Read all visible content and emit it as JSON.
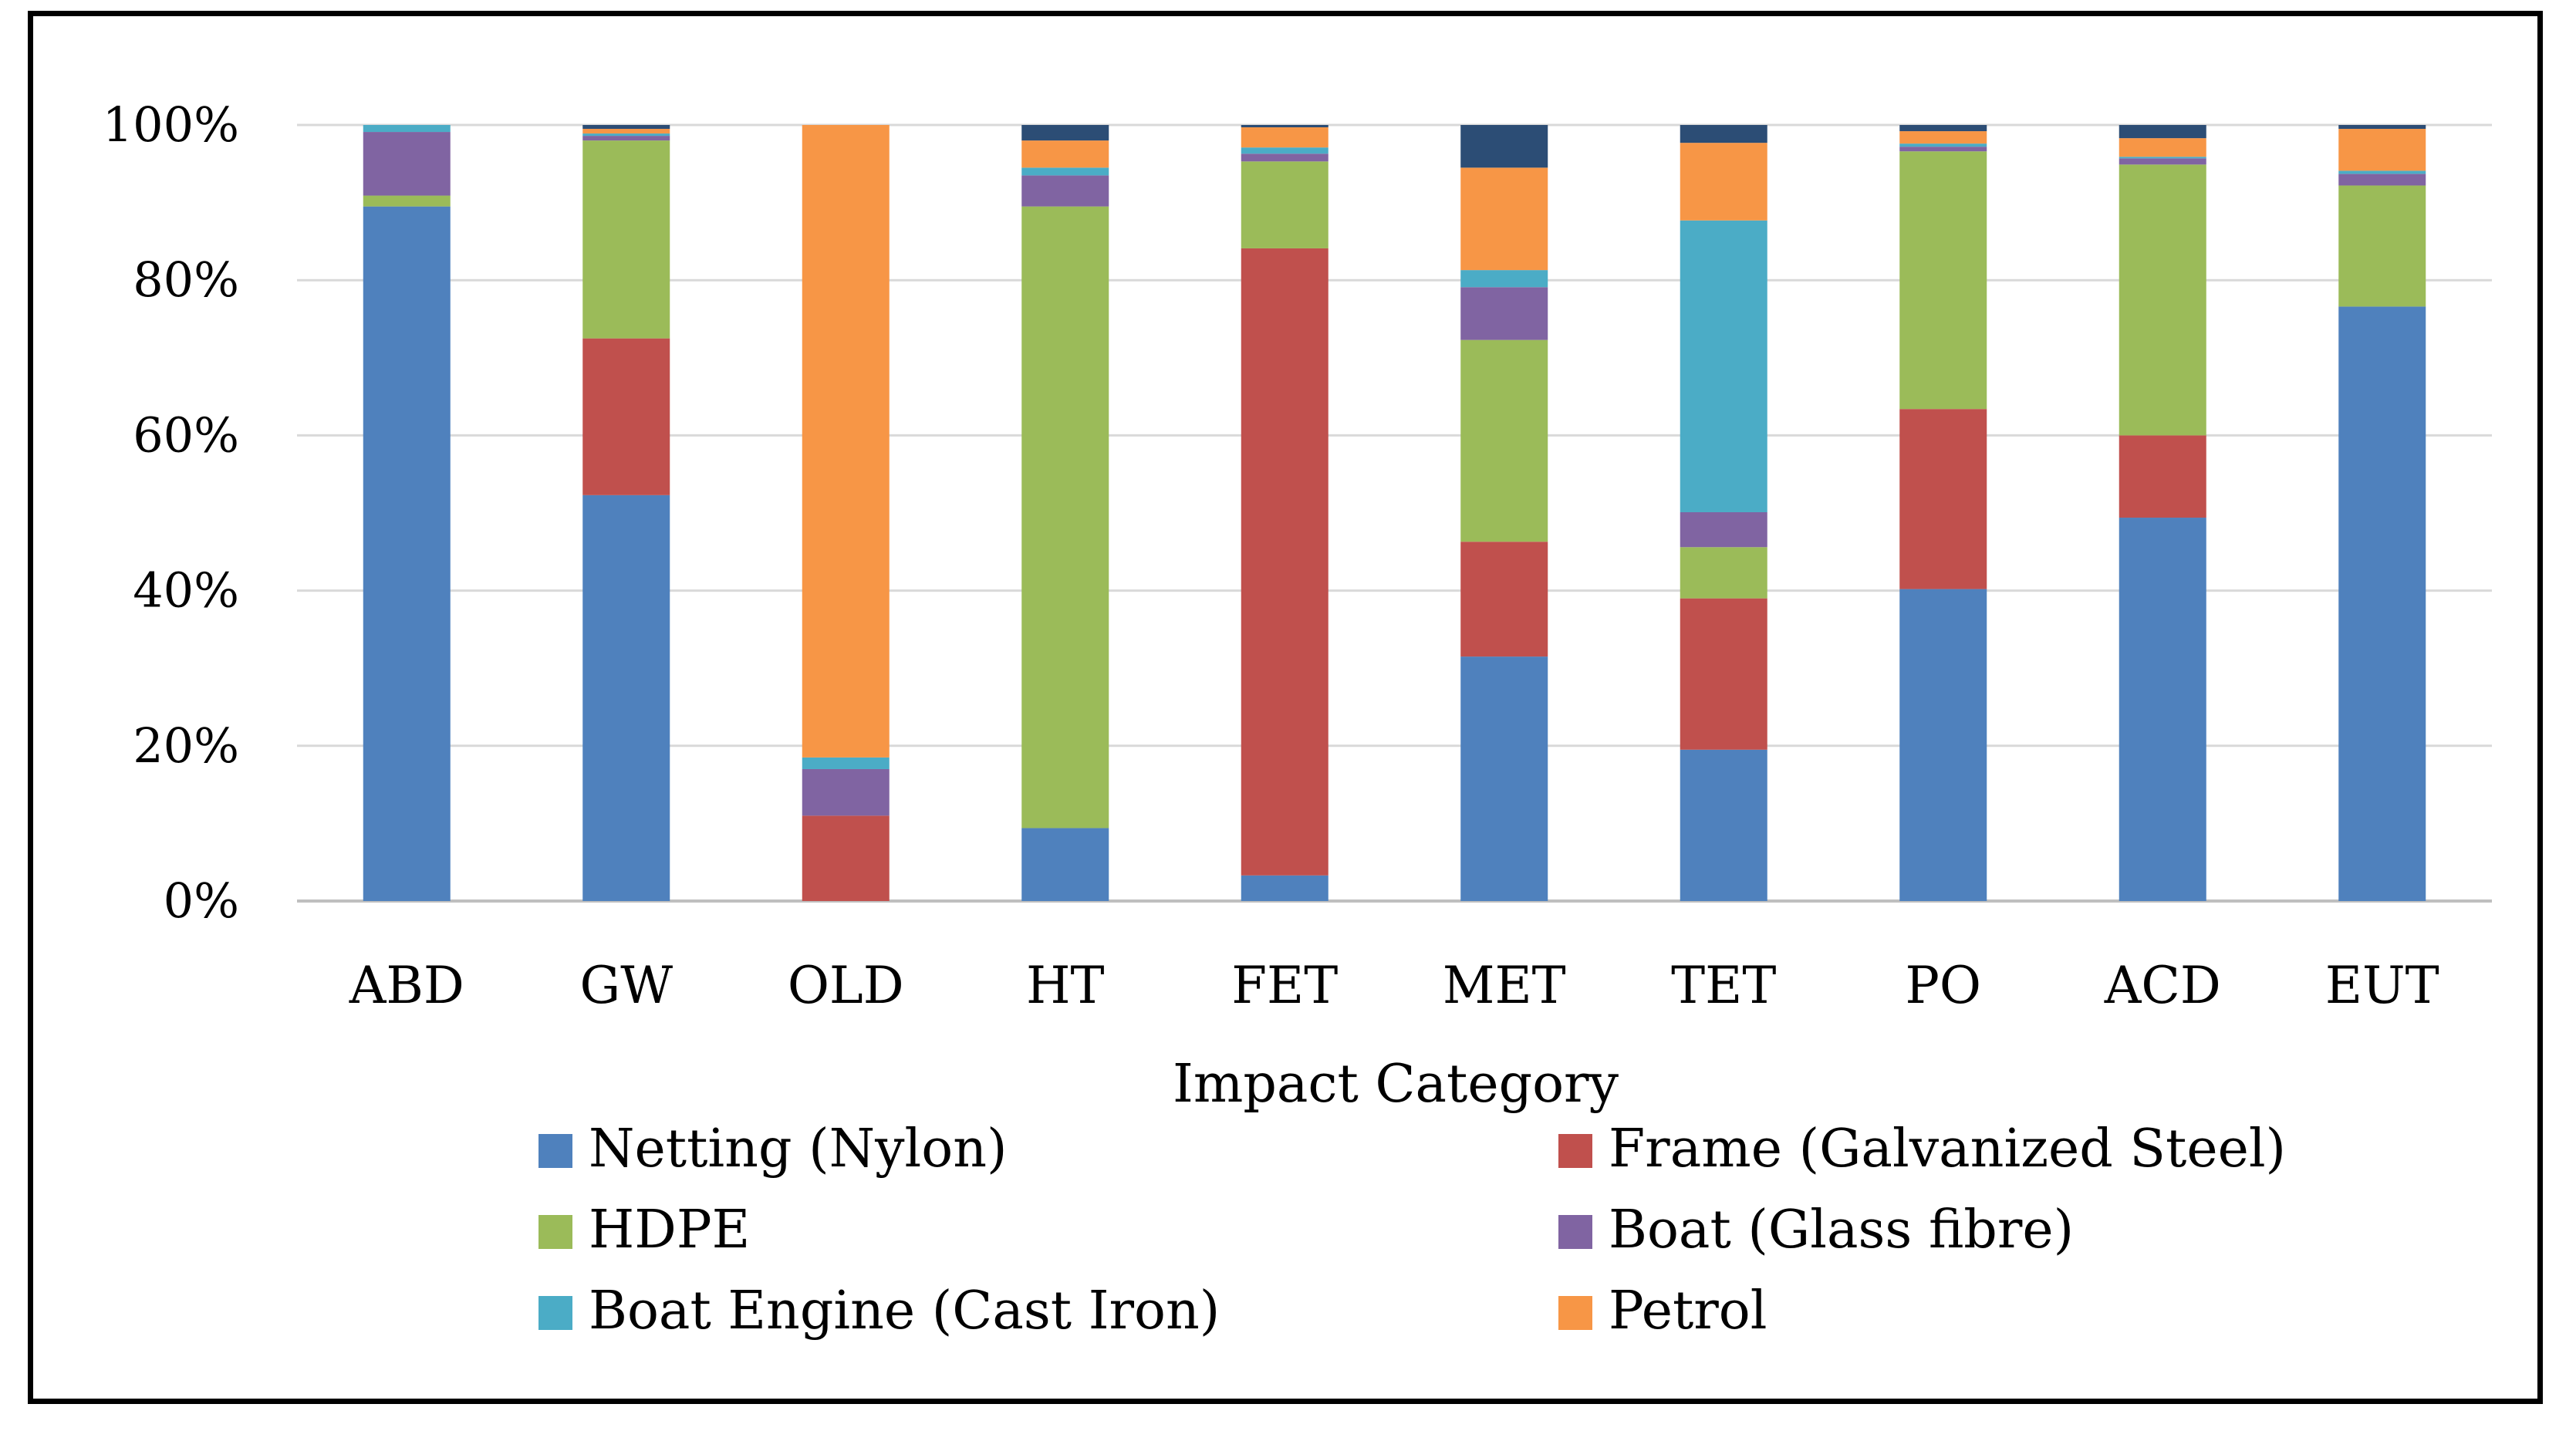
{
  "chart_data": {
    "type": "bar",
    "stacked": true,
    "xlabel": "Impact Category",
    "ylabel": "",
    "ylim": [
      0,
      100
    ],
    "y_ticks": [
      "0%",
      "20%",
      "40%",
      "60%",
      "80%",
      "100%"
    ],
    "grid": true,
    "legend_position": "bottom",
    "categories": [
      "ABD",
      "GW",
      "OLD",
      "HT",
      "FET",
      "MET",
      "TET",
      "PO",
      "ACD",
      "EUT"
    ],
    "series": [
      {
        "name": "Netting (Nylon)",
        "color": "#4F81BD",
        "values": [
          89.5,
          52.3,
          0.0,
          9.4,
          3.3,
          31.5,
          19.5,
          40.2,
          49.4,
          76.6
        ]
      },
      {
        "name": "Frame (Galvanized Steel)",
        "color": "#C0504D",
        "values": [
          0.0,
          20.2,
          11.0,
          0.0,
          80.8,
          14.8,
          19.5,
          23.2,
          10.6,
          0.0
        ]
      },
      {
        "name": "HDPE",
        "color": "#9BBB59",
        "values": [
          1.4,
          25.5,
          0.0,
          80.1,
          11.2,
          26.0,
          6.6,
          33.2,
          34.9,
          15.6
        ]
      },
      {
        "name": "Boat (Glass fibre)",
        "color": "#8064A2",
        "values": [
          8.2,
          0.6,
          6.0,
          4.0,
          1.0,
          6.8,
          4.5,
          0.6,
          0.8,
          1.5
        ]
      },
      {
        "name": "Boat Engine (Cast Iron)",
        "color": "#4BACC6",
        "values": [
          0.9,
          0.3,
          1.5,
          1.0,
          0.8,
          2.2,
          37.6,
          0.4,
          0.2,
          0.4
        ]
      },
      {
        "name": "Petrol",
        "color": "#F79646",
        "values": [
          0.0,
          0.6,
          81.5,
          3.5,
          2.6,
          13.2,
          10.0,
          1.6,
          2.4,
          5.4
        ]
      },
      {
        "name": "",
        "color": "#2C4D75",
        "values": [
          0.0,
          0.5,
          0.0,
          2.0,
          0.3,
          5.5,
          2.3,
          0.8,
          1.7,
          0.5
        ]
      }
    ]
  }
}
